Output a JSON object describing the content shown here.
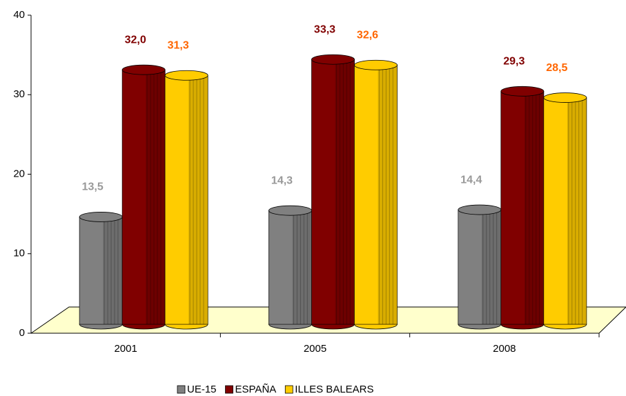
{
  "chart_data": {
    "type": "bar3d",
    "categories": [
      "2001",
      "2005",
      "2008"
    ],
    "series": [
      {
        "name": "UE-15",
        "color": "#808080",
        "label_color": "#999999",
        "values": [
          13.5,
          14.3,
          14.4
        ],
        "value_labels": [
          "13,5",
          "14,3",
          "14,4"
        ]
      },
      {
        "name": "ESPAÑA",
        "color": "#800000",
        "label_color": "#800000",
        "values": [
          32.0,
          33.3,
          29.3
        ],
        "value_labels": [
          "32,0",
          "33,3",
          "29,3"
        ]
      },
      {
        "name": "ILLES BALEARS",
        "color": "#ffcc00",
        "label_color": "#ff6600",
        "values": [
          31.3,
          32.6,
          28.5
        ],
        "value_labels": [
          "31,3",
          "32,6",
          "28,5"
        ]
      }
    ],
    "ylim": [
      0,
      40
    ],
    "yticks": [
      0,
      10,
      20,
      30,
      40
    ],
    "legend": "bottom"
  }
}
